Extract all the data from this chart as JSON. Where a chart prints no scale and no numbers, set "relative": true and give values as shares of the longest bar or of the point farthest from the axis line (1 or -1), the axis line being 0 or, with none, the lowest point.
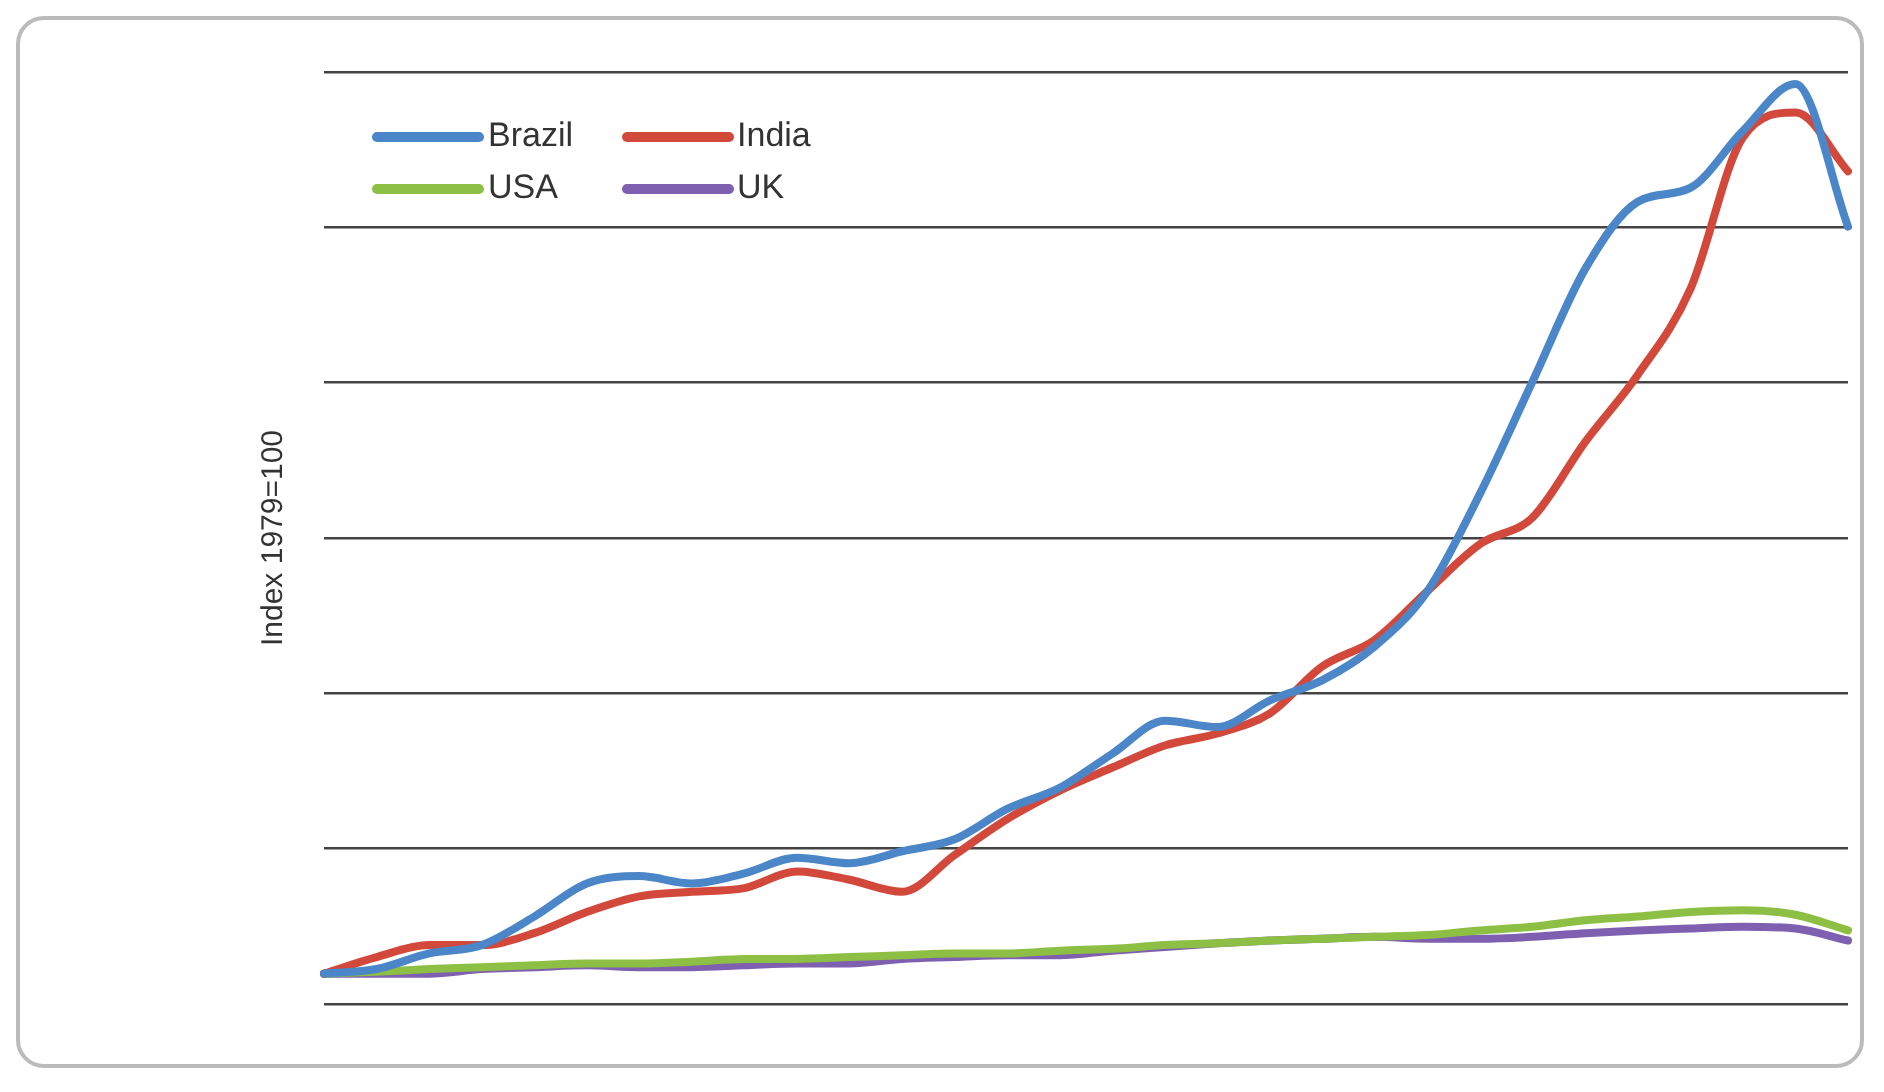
{
  "chart_data": {
    "type": "line",
    "ylabel": "Index 1979=100",
    "relative": true,
    "categories": [
      null,
      null,
      null,
      null,
      null,
      null,
      null,
      null,
      null,
      null,
      null,
      null,
      null,
      null,
      null,
      null,
      null,
      null,
      null,
      null,
      null,
      null,
      null,
      null,
      null,
      null,
      null,
      null,
      null,
      null
    ],
    "grid": "y",
    "legend": "top left",
    "marker": "none",
    "line_style": "solid",
    "series": [
      {
        "name": "Brazil",
        "color": "#4a86c8",
        "values": [
          0.033,
          0.038,
          0.055,
          0.064,
          0.095,
          0.131,
          0.139,
          0.131,
          0.142,
          0.159,
          0.153,
          0.166,
          0.179,
          0.212,
          0.235,
          0.272,
          0.308,
          0.301,
          0.33,
          0.352,
          0.389,
          0.449,
          0.555,
          0.677,
          0.799,
          0.872,
          0.887,
          0.949,
          1,
          0.845
        ]
      },
      {
        "name": "India",
        "color": "#d2493c",
        "values": [
          0.033,
          0.051,
          0.064,
          0.064,
          0.077,
          0.1,
          0.117,
          0.122,
          0.126,
          0.144,
          0.135,
          0.122,
          0.162,
          0.201,
          0.232,
          0.257,
          0.281,
          0.294,
          0.316,
          0.367,
          0.396,
          0.449,
          0.5,
          0.529,
          0.611,
          0.684,
          0.777,
          0.942,
          0.969,
          0.905
        ]
      },
      {
        "name": "USA",
        "color": "#8dbf45",
        "values": [
          0.033,
          0.035,
          0.038,
          0.04,
          0.042,
          0.044,
          0.044,
          0.046,
          0.049,
          0.049,
          0.051,
          0.053,
          0.055,
          0.055,
          0.058,
          0.06,
          0.064,
          0.066,
          0.069,
          0.071,
          0.073,
          0.075,
          0.08,
          0.084,
          0.091,
          0.095,
          0.1,
          0.102,
          0.097,
          0.08
        ]
      },
      {
        "name": "UK",
        "color": "#7f5fb0",
        "values": [
          0.033,
          0.033,
          0.033,
          0.038,
          0.04,
          0.042,
          0.04,
          0.04,
          0.042,
          0.044,
          0.044,
          0.049,
          0.051,
          0.053,
          0.053,
          0.058,
          0.062,
          0.066,
          0.069,
          0.071,
          0.073,
          0.071,
          0.071,
          0.073,
          0.077,
          0.08,
          0.082,
          0.084,
          0.082,
          0.069
        ]
      }
    ]
  }
}
